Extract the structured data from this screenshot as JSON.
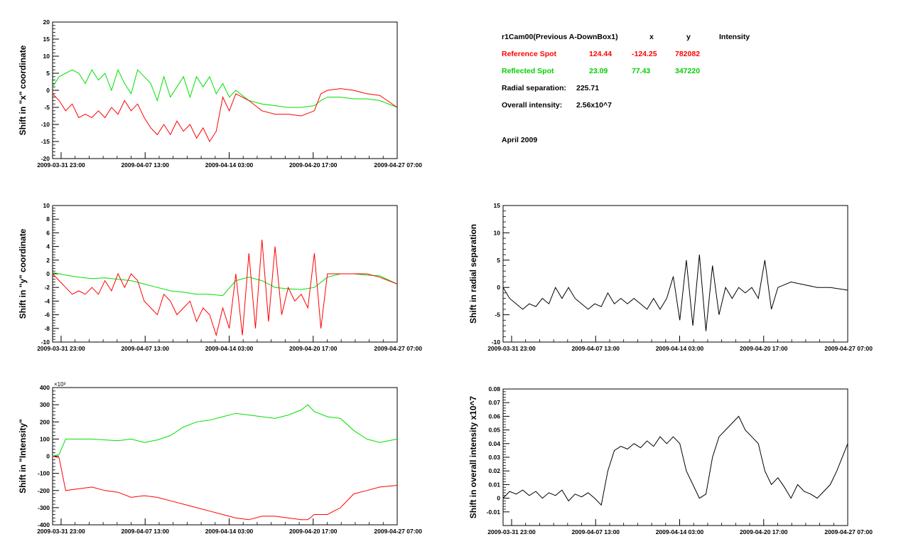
{
  "colors": {
    "reference": "#ff0000",
    "reflected": "#00e000",
    "single": "#000000"
  },
  "info": {
    "camera_label": "r1Cam00(Previous A-DownBox1)",
    "col_x": "x",
    "col_y": "y",
    "col_intensity": "Intensity",
    "reference": {
      "label": "Reference Spot",
      "x": "124.44",
      "y": "-124.25",
      "intensity": "782082"
    },
    "reflected": {
      "label": "Reflected Spot",
      "x": "23.09",
      "y": "77.43",
      "intensity": "347220"
    },
    "radial_label": "Radial separation:",
    "radial_value": "225.71",
    "overall_label": "Overall intensity:",
    "overall_value": "2.56x10^7",
    "month": "April 2009"
  },
  "chart_data": [
    {
      "id": "x-shift",
      "type": "line",
      "ylabel": "Shift in \"x\" coordinate",
      "xlim": [
        0,
        26.33
      ],
      "ylim": [
        -20,
        20
      ],
      "yticks": [
        "-20",
        "-15",
        "-10",
        "-5",
        "0",
        "5",
        "10",
        "15",
        "20"
      ],
      "xtick_labels": [
        "2009-03-31 23:00",
        "2009-04-07 13:00",
        "2009-04-14 03:00",
        "2009-04-20 17:00",
        "2009-04-27 07:00"
      ],
      "series": [
        {
          "color_key": "reflected",
          "x": [
            0,
            0.5,
            1,
            1.5,
            2,
            2.5,
            3,
            3.5,
            4,
            4.5,
            5,
            5.5,
            6,
            6.5,
            7,
            7.5,
            8,
            8.5,
            9,
            9.5,
            10,
            10.5,
            11,
            11.5,
            12,
            12.5,
            13,
            13.5,
            14,
            15,
            16,
            17,
            18,
            19,
            20,
            20.5,
            21,
            22,
            23,
            24,
            25,
            26.33
          ],
          "y": [
            1,
            4,
            5,
            6,
            5,
            2,
            6,
            3,
            5,
            0,
            6,
            2,
            -1,
            6,
            4,
            2,
            -3,
            4,
            -2,
            1,
            4,
            -2,
            4,
            1,
            4,
            -1,
            2,
            -2,
            0,
            -3,
            -4,
            -4.5,
            -5,
            -5,
            -4.5,
            -3,
            -2,
            -2,
            -2.5,
            -2.5,
            -3,
            -5
          ]
        },
        {
          "color_key": "reference",
          "x": [
            0,
            0.5,
            1,
            1.5,
            2,
            2.5,
            3,
            3.5,
            4,
            4.5,
            5,
            5.5,
            6,
            6.5,
            7,
            7.5,
            8,
            8.5,
            9,
            9.5,
            10,
            10.5,
            11,
            11.5,
            12,
            12.5,
            13,
            13.5,
            14,
            15,
            16,
            17,
            18,
            19,
            20,
            20.5,
            21,
            22,
            23,
            24,
            25,
            26.33
          ],
          "y": [
            -1,
            -3,
            -6,
            -4,
            -8,
            -7,
            -8,
            -6,
            -8,
            -5,
            -7,
            -3,
            -6,
            -4,
            -8,
            -11,
            -13,
            -10,
            -13,
            -9,
            -12,
            -10,
            -14,
            -11,
            -15,
            -12,
            -2,
            -6,
            -1,
            -3,
            -6,
            -7,
            -7,
            -7.5,
            -6,
            -1,
            0,
            0.5,
            0,
            -1,
            -1.5,
            -5
          ]
        }
      ]
    },
    {
      "id": "y-shift",
      "type": "line",
      "ylabel": "Shift in \"y\" coordinate",
      "xlim": [
        0,
        26.33
      ],
      "ylim": [
        -10,
        10
      ],
      "yticks": [
        "-10",
        "-8",
        "-6",
        "-4",
        "-2",
        "0",
        "2",
        "4",
        "6",
        "8",
        "10"
      ],
      "xtick_labels": [
        "2009-03-31 23:00",
        "2009-04-07 13:00",
        "2009-04-14 03:00",
        "2009-04-20 17:00",
        "2009-04-27 07:00"
      ],
      "series": [
        {
          "color_key": "reflected",
          "x": [
            0,
            1,
            2,
            3,
            4,
            5,
            6,
            7,
            8,
            9,
            10,
            11,
            12,
            13,
            14,
            15,
            16,
            17,
            18,
            19,
            20,
            21,
            22,
            23,
            24,
            25,
            26.33
          ],
          "y": [
            0.2,
            -0.2,
            -0.5,
            -0.7,
            -0.6,
            -0.8,
            -1,
            -1.5,
            -2,
            -2.5,
            -2.7,
            -3,
            -3,
            -3.2,
            -1,
            -0.5,
            -1,
            -2,
            -2.2,
            -2.3,
            -2,
            -0.5,
            0,
            0,
            -0.2,
            -0.3,
            -1.5
          ]
        },
        {
          "color_key": "reference",
          "x": [
            0,
            0.5,
            1,
            1.5,
            2,
            2.5,
            3,
            3.5,
            4,
            4.5,
            5,
            5.5,
            6,
            6.5,
            7,
            7.5,
            8,
            8.5,
            9,
            9.5,
            10,
            10.5,
            11,
            11.5,
            12,
            12.5,
            13,
            13.5,
            14,
            14.5,
            15,
            15.5,
            16,
            16.5,
            17,
            17.5,
            18,
            18.5,
            19,
            19.5,
            20,
            20.5,
            21,
            22,
            23,
            24,
            25,
            26.33
          ],
          "y": [
            0,
            -1,
            -2,
            -3,
            -2.5,
            -3,
            -2,
            -3,
            -1,
            -2.5,
            0,
            -2,
            0,
            -1,
            -4,
            -5,
            -6,
            -3,
            -4,
            -6,
            -5,
            -4,
            -7,
            -5,
            -6,
            -9,
            -5,
            -8,
            0,
            -9,
            3,
            -8,
            5,
            -7,
            4,
            -6,
            -2,
            -4,
            -3,
            -5,
            3,
            -8,
            0,
            0,
            0,
            0,
            -0.5,
            -1.5
          ]
        }
      ]
    },
    {
      "id": "intensity-shift",
      "type": "line",
      "ylabel": "Shift in \"Intensity\"",
      "exponent_label": "×10³",
      "xlim": [
        0,
        26.33
      ],
      "ylim": [
        -400,
        400
      ],
      "yticks": [
        "-400",
        "-300",
        "-200",
        "-100",
        "0",
        "100",
        "200",
        "300",
        "400"
      ],
      "xtick_labels": [
        "2009-03-31 23:00",
        "2009-04-07 13:00",
        "2009-04-14 03:00",
        "2009-04-20 17:00",
        "2009-04-27 07:00"
      ],
      "series": [
        {
          "color_key": "reflected",
          "x": [
            0,
            0.5,
            1,
            2,
            3,
            4,
            5,
            6,
            7,
            8,
            9,
            10,
            11,
            12,
            13,
            14,
            15,
            16,
            17,
            18,
            19,
            19.5,
            20,
            21,
            22,
            23,
            24,
            25,
            26.33
          ],
          "y": [
            0,
            10,
            100,
            100,
            100,
            95,
            90,
            100,
            80,
            95,
            120,
            170,
            200,
            210,
            230,
            250,
            240,
            230,
            220,
            240,
            270,
            300,
            260,
            230,
            220,
            150,
            100,
            80,
            100
          ]
        },
        {
          "color_key": "reference",
          "x": [
            0,
            0.5,
            1,
            2,
            3,
            4,
            5,
            6,
            7,
            8,
            9,
            10,
            11,
            12,
            13,
            14,
            15,
            16,
            17,
            18,
            19,
            19.5,
            20,
            21,
            22,
            23,
            24,
            25,
            26.33
          ],
          "y": [
            0,
            -10,
            -200,
            -190,
            -180,
            -200,
            -210,
            -240,
            -230,
            -240,
            -260,
            -280,
            -300,
            -320,
            -340,
            -360,
            -370,
            -350,
            -350,
            -360,
            -370,
            -370,
            -340,
            -340,
            -300,
            -220,
            -200,
            -180,
            -170
          ]
        }
      ]
    },
    {
      "id": "radial-shift",
      "type": "line",
      "ylabel": "Shift in radial separation",
      "xlim": [
        0,
        26.33
      ],
      "ylim": [
        -10,
        15
      ],
      "yticks": [
        "-10",
        "-5",
        "0",
        "5",
        "10",
        "15"
      ],
      "xtick_labels": [
        "2009-03-31 23:00",
        "2009-04-07 13:00",
        "2009-04-14 03:00",
        "2009-04-20 17:00",
        "2009-04-27 07:00"
      ],
      "series": [
        {
          "color_key": "single",
          "x": [
            0,
            0.5,
            1,
            1.5,
            2,
            2.5,
            3,
            3.5,
            4,
            4.5,
            5,
            5.5,
            6,
            6.5,
            7,
            7.5,
            8,
            8.5,
            9,
            9.5,
            10,
            10.5,
            11,
            11.5,
            12,
            12.5,
            13,
            13.5,
            14,
            14.5,
            15,
            15.5,
            16,
            16.5,
            17,
            17.5,
            18,
            18.5,
            19,
            19.5,
            20,
            20.5,
            21,
            22,
            23,
            24,
            25,
            26.33
          ],
          "y": [
            0,
            -2,
            -3,
            -4,
            -3,
            -3.5,
            -2,
            -3,
            0,
            -2,
            0,
            -2,
            -3,
            -4,
            -3,
            -3.5,
            -1,
            -3,
            -2,
            -3,
            -2,
            -3,
            -4,
            -2,
            -4,
            -2,
            2,
            -6,
            5,
            -7,
            6,
            -8,
            4,
            -5,
            0,
            -2,
            0,
            -1,
            0,
            -2,
            5,
            -4,
            0,
            1,
            0.5,
            0,
            0,
            -0.5
          ]
        }
      ]
    },
    {
      "id": "overall-intensity-shift",
      "type": "line",
      "ylabel": "Shift in overall intensity x10^7",
      "xlim": [
        0,
        26.33
      ],
      "ylim": [
        -0.02,
        0.08
      ],
      "yticks": [
        "-0.01",
        "0",
        "0.01",
        "0.02",
        "0.03",
        "0.04",
        "0.05",
        "0.06",
        "0.07",
        "0.08"
      ],
      "xtick_labels": [
        "2009-03-31 23:00",
        "2009-04-07 13:00",
        "2009-04-14 03:00",
        "2009-04-20 17:00",
        "2009-04-27 07:00"
      ],
      "series": [
        {
          "color_key": "single",
          "x": [
            0,
            0.5,
            1,
            1.5,
            2,
            2.5,
            3,
            3.5,
            4,
            4.5,
            5,
            5.5,
            6,
            6.5,
            7,
            7.5,
            8,
            8.5,
            9,
            9.5,
            10,
            10.5,
            11,
            11.5,
            12,
            12.5,
            13,
            13.5,
            14,
            14.5,
            15,
            15.5,
            16,
            16.5,
            17,
            17.5,
            18,
            18.5,
            19,
            19.5,
            20,
            20.5,
            21,
            21.5,
            22,
            22.5,
            23,
            23.5,
            24,
            24.5,
            25,
            25.5,
            26.33
          ],
          "y": [
            0,
            0.005,
            0.003,
            0.006,
            0.002,
            0.005,
            0,
            0.004,
            0.002,
            0.006,
            -0.002,
            0.003,
            0.001,
            0.004,
            0,
            -0.005,
            0.02,
            0.035,
            0.038,
            0.036,
            0.04,
            0.037,
            0.042,
            0.038,
            0.045,
            0.04,
            0.045,
            0.04,
            0.02,
            0.01,
            0,
            0.003,
            0.03,
            0.045,
            0.05,
            0.055,
            0.06,
            0.05,
            0.045,
            0.04,
            0.02,
            0.01,
            0.015,
            0.008,
            0,
            0.01,
            0.005,
            0.003,
            0,
            0.005,
            0.01,
            0.02,
            0.04
          ]
        }
      ]
    }
  ]
}
